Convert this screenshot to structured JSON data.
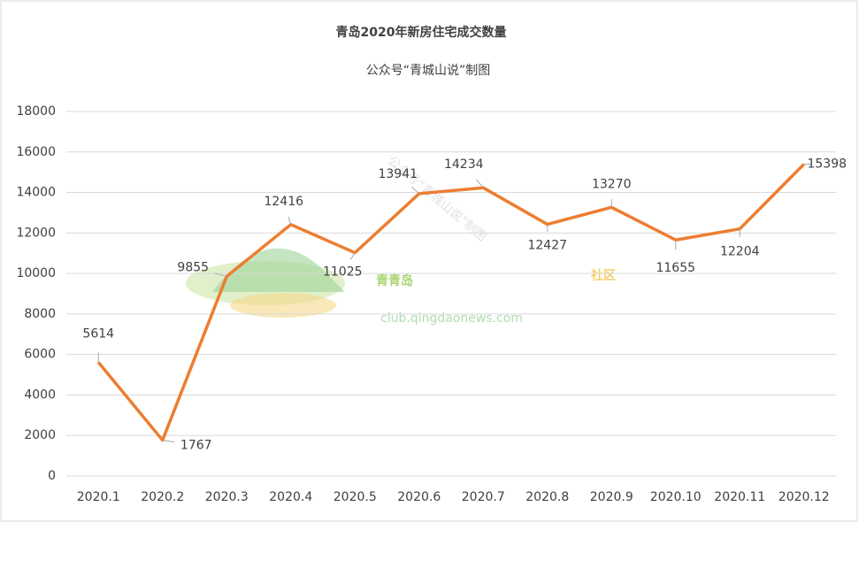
{
  "chart_data": {
    "type": "line",
    "title": "青岛2020年新房住宅成交数量",
    "subtitle": "公众号“青城山说”制图",
    "categories": [
      "2020.1",
      "2020.2",
      "2020.3",
      "2020.4",
      "2020.5",
      "2020.6",
      "2020.7",
      "2020.8",
      "2020.9",
      "2020.10",
      "2020.11",
      "2020.12"
    ],
    "values": [
      5614,
      1767,
      9855,
      12416,
      11025,
      13941,
      14234,
      12427,
      13270,
      11655,
      12204,
      15398
    ],
    "color": "#ed7d31",
    "ylim": [
      0,
      18000
    ],
    "yticks": [
      0,
      2000,
      4000,
      6000,
      8000,
      10000,
      12000,
      14000,
      16000,
      18000
    ],
    "grid": true,
    "watermark": {
      "text": "公众号“青城山说”制图",
      "logo": "青青岛",
      "logo_sub": "社区",
      "url": "club.qingdaonews.com"
    }
  }
}
